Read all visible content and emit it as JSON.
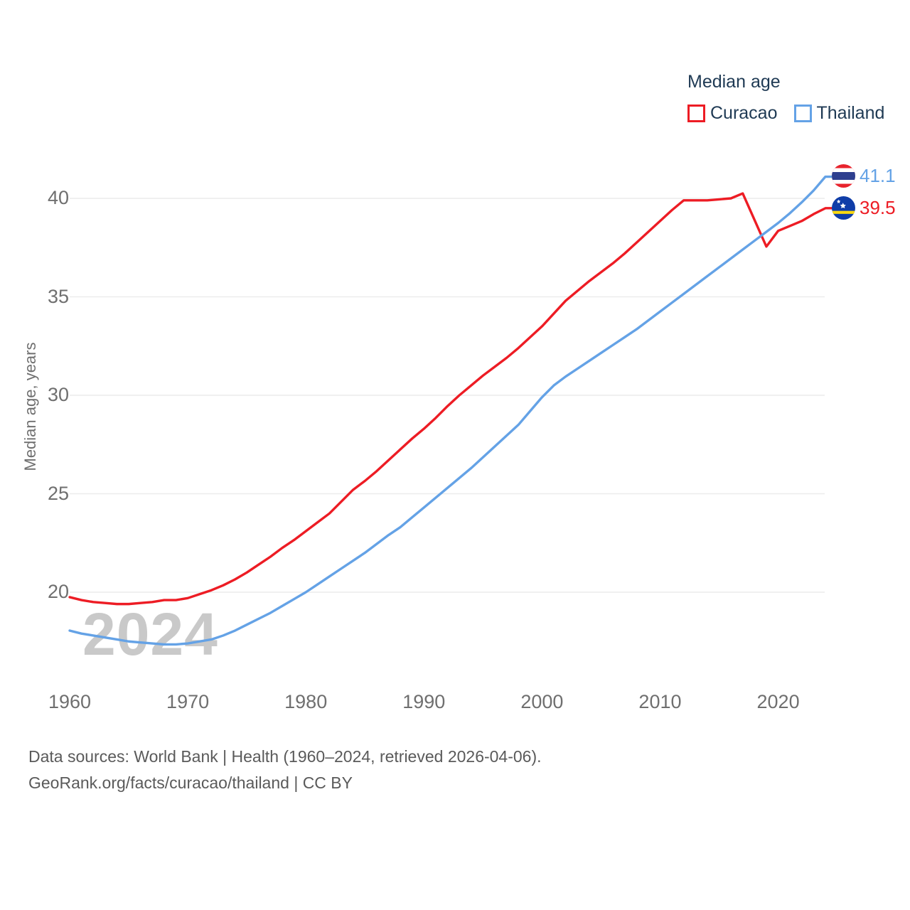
{
  "legend": {
    "title": "Median age",
    "items": [
      {
        "label": "Curacao",
        "color": "#ed1c24"
      },
      {
        "label": "Thailand",
        "color": "#64a2e6"
      }
    ]
  },
  "watermark": "2024",
  "axes": {
    "y_title": "Median age, years"
  },
  "footer": {
    "line1": "Data sources: World Bank | Health (1960–2024, retrieved 2026-04-06).",
    "line2": "GeoRank.org/facts/curacao/thailand | CC BY"
  },
  "chart_data": {
    "type": "line",
    "title": "Median age",
    "ylabel": "Median age, years",
    "xlabel": "",
    "grid": "horizontal",
    "legend_position": "top-right",
    "xlim": [
      1960,
      2024
    ],
    "ylim": [
      16.8,
      42.5
    ],
    "yticks": [
      20,
      25,
      30,
      35,
      40
    ],
    "xticks": [
      1960,
      1970,
      1980,
      1990,
      2000,
      2010,
      2020
    ],
    "x": [
      1960,
      1961,
      1962,
      1963,
      1964,
      1965,
      1966,
      1967,
      1968,
      1969,
      1970,
      1971,
      1972,
      1973,
      1974,
      1975,
      1976,
      1977,
      1978,
      1979,
      1980,
      1981,
      1982,
      1983,
      1984,
      1985,
      1986,
      1987,
      1988,
      1989,
      1990,
      1991,
      1992,
      1993,
      1994,
      1995,
      1996,
      1997,
      1998,
      1999,
      2000,
      2001,
      2002,
      2003,
      2004,
      2005,
      2006,
      2007,
      2008,
      2009,
      2010,
      2011,
      2012,
      2013,
      2014,
      2015,
      2016,
      2017,
      2018,
      2019,
      2020,
      2021,
      2022,
      2023,
      2024
    ],
    "series": [
      {
        "name": "Curacao",
        "color": "#ed1c24",
        "end_label": "39.5",
        "end_value": 39.5,
        "values": [
          19.75,
          19.6,
          19.5,
          19.45,
          19.4,
          19.4,
          19.45,
          19.5,
          19.6,
          19.6,
          19.7,
          19.9,
          20.1,
          20.35,
          20.65,
          21.0,
          21.4,
          21.8,
          22.25,
          22.65,
          23.1,
          23.55,
          24.0,
          24.6,
          25.2,
          25.65,
          26.15,
          26.7,
          27.25,
          27.8,
          28.3,
          28.85,
          29.45,
          30.0,
          30.5,
          31.0,
          31.45,
          31.9,
          32.4,
          32.95,
          33.5,
          34.15,
          34.8,
          35.3,
          35.8,
          36.25,
          36.7,
          37.2,
          37.75,
          38.3,
          38.85,
          39.4,
          39.9,
          39.9,
          39.9,
          39.95,
          40.0,
          40.25,
          38.9,
          37.55,
          38.35,
          38.6,
          38.85,
          39.2,
          39.5
        ]
      },
      {
        "name": "Thailand",
        "color": "#64a2e6",
        "end_label": "41.1",
        "end_value": 41.1,
        "values": [
          18.05,
          17.9,
          17.8,
          17.7,
          17.6,
          17.5,
          17.45,
          17.4,
          17.35,
          17.35,
          17.4,
          17.5,
          17.6,
          17.8,
          18.05,
          18.35,
          18.65,
          18.95,
          19.3,
          19.65,
          20.0,
          20.4,
          20.8,
          21.2,
          21.6,
          22.0,
          22.45,
          22.9,
          23.3,
          23.8,
          24.3,
          24.8,
          25.3,
          25.8,
          26.3,
          26.85,
          27.4,
          27.95,
          28.5,
          29.2,
          29.9,
          30.5,
          30.95,
          31.35,
          31.75,
          32.15,
          32.55,
          32.95,
          33.35,
          33.8,
          34.25,
          34.7,
          35.15,
          35.6,
          36.05,
          36.5,
          36.95,
          37.4,
          37.85,
          38.3,
          38.75,
          39.25,
          39.8,
          40.4,
          41.1
        ]
      }
    ]
  }
}
